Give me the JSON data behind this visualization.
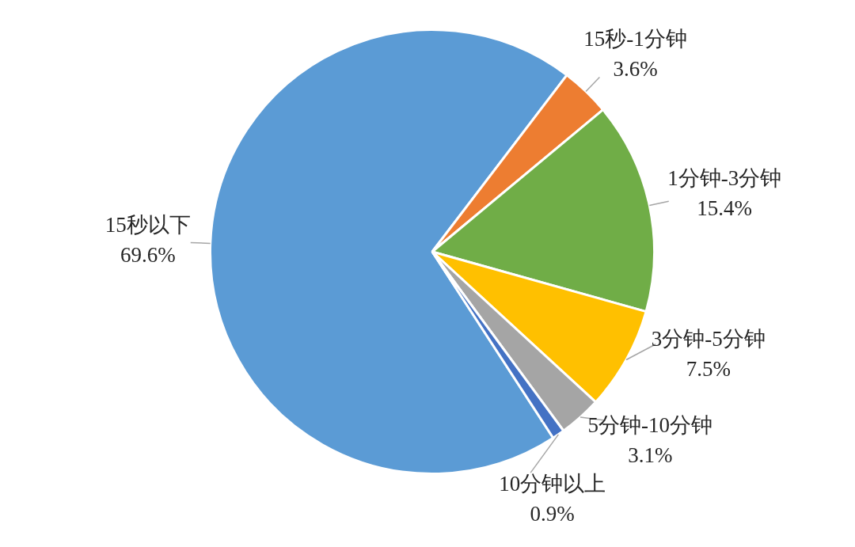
{
  "chart_data": {
    "type": "pie",
    "categories": [
      "15秒以下",
      "15秒-1分钟",
      "1分钟-3分钟",
      "3分钟-5分钟",
      "5分钟-10分钟",
      "10分钟以上"
    ],
    "values": [
      69.6,
      3.6,
      15.4,
      7.5,
      3.1,
      0.9
    ],
    "colors": [
      "#5b9bd5",
      "#ed7d31",
      "#70ad47",
      "#ffc000",
      "#a5a5a5",
      "#4472c4"
    ],
    "value_labels": [
      "69.6%",
      "3.6%",
      "15.4%",
      "7.5%",
      "3.1%",
      "0.9%"
    ]
  }
}
